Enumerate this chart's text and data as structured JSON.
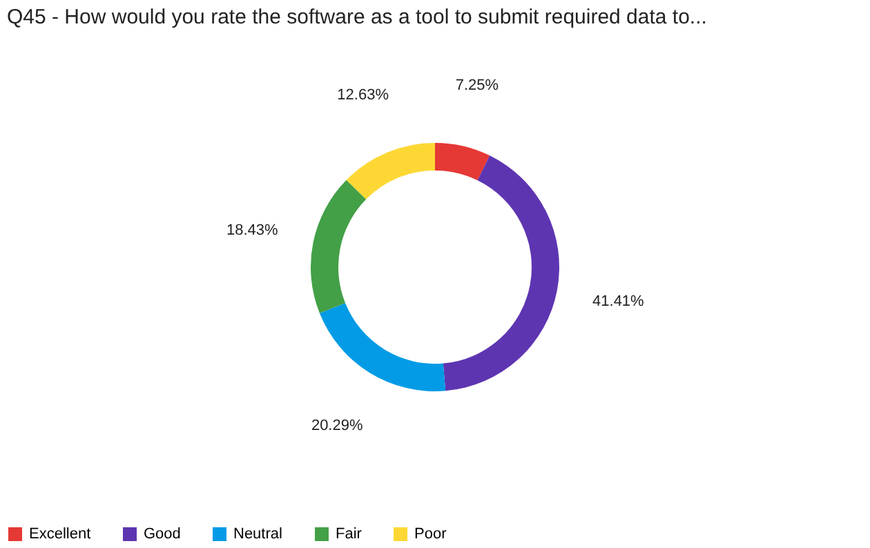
{
  "chart_data": {
    "type": "donut",
    "title": "Q45 - How would you rate the software as a tool to submit required data to...",
    "categories": [
      "Excellent",
      "Good",
      "Neutral",
      "Fair",
      "Poor"
    ],
    "values": [
      7.25,
      41.41,
      20.29,
      18.43,
      12.63
    ],
    "value_labels": [
      "7.25%",
      "41.41%",
      "20.29%",
      "18.43%",
      "12.63%"
    ],
    "colors": [
      "#e53935",
      "#5e35b1",
      "#039be5",
      "#43a047",
      "#fdd835"
    ],
    "legend": "bottom"
  }
}
